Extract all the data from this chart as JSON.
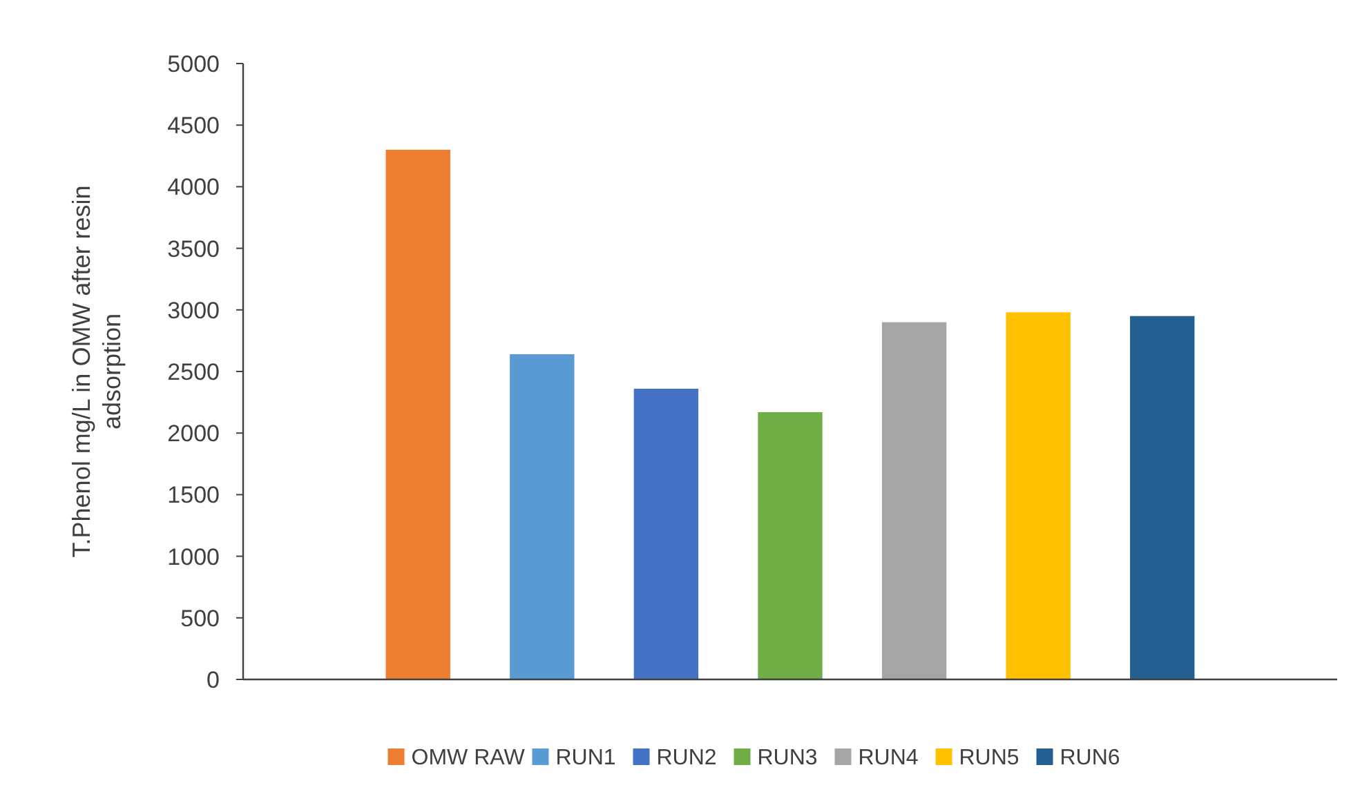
{
  "chart_data": {
    "type": "bar",
    "ylabel": "T.Phenol mg/L in OMW after resin adsorption",
    "categories": [
      null
    ],
    "series": [
      {
        "name": "OMW RAW",
        "color": "#ed7d31",
        "values": [
          4300
        ]
      },
      {
        "name": "RUN1",
        "color": "#5b9bd5",
        "values": [
          2640
        ]
      },
      {
        "name": "RUN2",
        "color": "#4472c4",
        "values": [
          2360
        ]
      },
      {
        "name": "RUN3",
        "color": "#70ad47",
        "values": [
          2170
        ]
      },
      {
        "name": "RUN4",
        "color": "#a5a5a5",
        "values": [
          2900
        ]
      },
      {
        "name": "RUN5",
        "color": "#ffc000",
        "values": [
          2980
        ]
      },
      {
        "name": "RUN6",
        "color": "#255e91",
        "values": [
          2950
        ]
      }
    ],
    "ylim": [
      0,
      5000
    ],
    "yticks": [
      0,
      500,
      1000,
      1500,
      2000,
      2500,
      3000,
      3500,
      4000,
      4500,
      5000
    ],
    "grid": false,
    "legend": "bottom"
  }
}
